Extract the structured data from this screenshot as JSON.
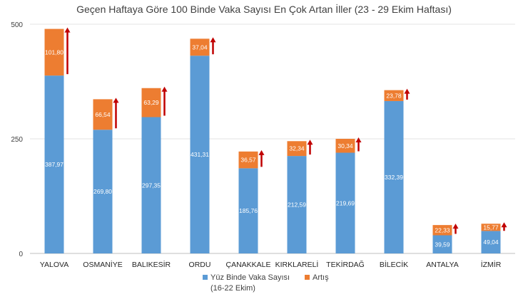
{
  "chart_data": {
    "type": "bar",
    "stacked": true,
    "title": "Geçen Haftaya Göre 100 Binde Vaka Sayısı En Çok Artan İller (23 - 29 Ekim Haftası)",
    "categories": [
      "YALOVA",
      "OSMANİYE",
      "BALIKESİR",
      "ORDU",
      "ÇANAKKALE",
      "KIRKLARELİ",
      "TEKİRDAĞ",
      "BİLECİK",
      "ANTALYA",
      "İZMİR"
    ],
    "series": [
      {
        "name": "Yüz Binde Vaka Sayısı (16-22 Ekim)",
        "legend_lines": [
          "Yüz Binde Vaka Sayısı",
          "(16-22 Ekim)"
        ],
        "color": "#5b9bd5",
        "values": [
          387.97,
          269.8,
          297.35,
          431.31,
          185.76,
          212.59,
          219.69,
          332.39,
          39.59,
          49.04
        ],
        "labels": [
          "387,97",
          "269,80",
          "297,35",
          "431,31",
          "185,76",
          "212,59",
          "219,69",
          "332,39",
          "39,59",
          "49,04"
        ]
      },
      {
        "name": "Artış",
        "legend_lines": [
          "Artış"
        ],
        "color": "#ed7d31",
        "values": [
          101.8,
          66.54,
          63.29,
          37.04,
          36.57,
          32.34,
          30.34,
          23.78,
          22.33,
          15.77
        ],
        "labels": [
          "101,80",
          "66,54",
          "63,29",
          "37,04",
          "36,57",
          "32,34",
          "30,34",
          "23,78",
          "22,33",
          "15,77"
        ]
      }
    ],
    "ylim": [
      0,
      500
    ],
    "yticks": [
      0,
      250,
      500
    ],
    "ytick_labels": [
      "0",
      "250",
      "500"
    ],
    "grid": true,
    "legend_position": "bottom",
    "arrow_color": "#c00000",
    "xlabel": "",
    "ylabel": ""
  }
}
